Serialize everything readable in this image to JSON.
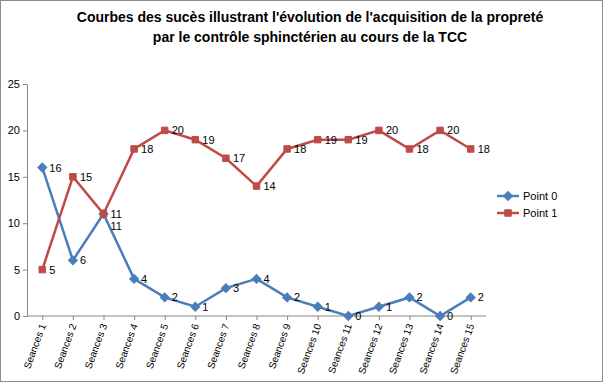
{
  "chart_data": {
    "type": "line",
    "title": "Courbes des sucès illustrant l'évolution de l'acquisition de la propreté par le contrôle sphinctérien au cours de la  TCC",
    "categories": [
      "Seances 1",
      "Seances 2",
      "Seances 3",
      "Seances 4",
      "Seances 5",
      "Seances 6",
      "Seances 7",
      "Seances 8",
      "Seances 9",
      "Seances 10",
      "Seances 11",
      "Seances 12",
      "Seances 13",
      "Seances 14",
      "Seances 15"
    ],
    "series": [
      {
        "name": "Point 0",
        "color": "#4a7ebb",
        "marker": "diamond",
        "values": [
          16,
          6,
          11,
          4,
          2,
          1,
          3,
          4,
          2,
          1,
          0,
          1,
          2,
          0,
          2
        ]
      },
      {
        "name": "Point 1",
        "color": "#be4b48",
        "marker": "square",
        "values": [
          5,
          15,
          11,
          18,
          20,
          19,
          17,
          14,
          18,
          19,
          19,
          20,
          18,
          20,
          18
        ]
      }
    ],
    "ylim": [
      0,
      25
    ],
    "yticks": [
      0,
      5,
      10,
      15,
      20,
      25
    ],
    "grid": false,
    "data_labels": true,
    "legend": "right"
  }
}
